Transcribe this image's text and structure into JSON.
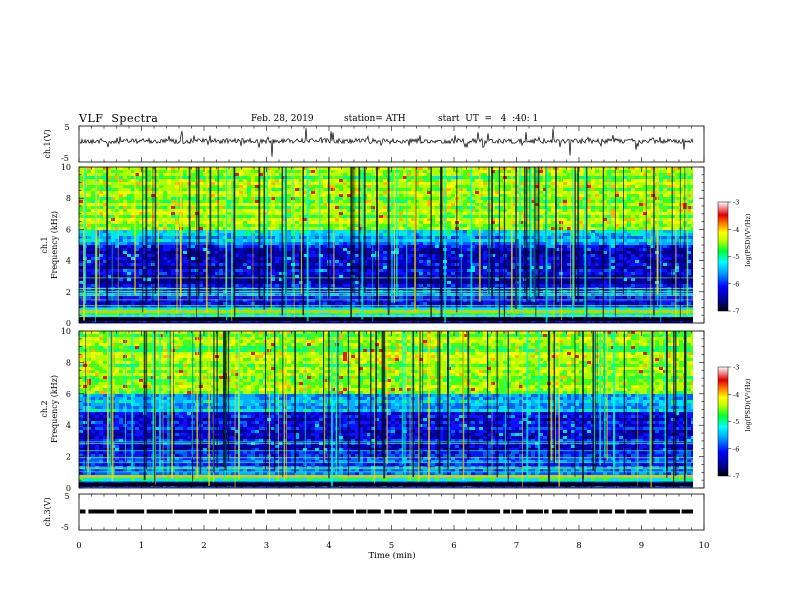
{
  "header": {
    "title": "VLF  Spectra",
    "date": "Feb. 28, 2019",
    "station": "station= ATH",
    "start": "start  UT  =   4  :40: 1"
  },
  "chart_data": [
    {
      "type": "line",
      "ylabel": "ch.1(V)",
      "ylim": [
        -5,
        5
      ],
      "yticks": [
        "5",
        "-5"
      ],
      "xlim": [
        0,
        10
      ]
    },
    {
      "type": "heatmap",
      "ylabel_top": "ch.1",
      "ylabel": "Frequency  (kHz)",
      "ylim": [
        0,
        10
      ],
      "yticks": [
        "10",
        "8",
        "6",
        "4",
        "2",
        "0"
      ],
      "colorbar": {
        "label": "log(PSD)(V²/Hz)",
        "range": [
          -7,
          -3
        ],
        "ticks": [
          "-3",
          "-4",
          "-5",
          "-6",
          "-7"
        ]
      }
    },
    {
      "type": "heatmap",
      "ylabel_top": "ch.2",
      "ylabel": "Frequency  (kHz)",
      "ylim": [
        0,
        10
      ],
      "yticks": [
        "10",
        "8",
        "6",
        "4",
        "2",
        "0"
      ],
      "colorbar": {
        "label": "log(PSD)(V²/Hz)",
        "range": [
          -7,
          -3
        ],
        "ticks": [
          "-3",
          "-4",
          "-5",
          "-6",
          "-7"
        ]
      }
    },
    {
      "type": "line",
      "ylabel": "ch.3(V)",
      "ylim": [
        -5,
        5
      ],
      "yticks": [
        "5",
        "-5"
      ],
      "xlim": [
        0,
        10
      ]
    }
  ],
  "xaxis": {
    "label": "Time  (min)",
    "range": [
      0,
      10
    ],
    "ticks": [
      "0",
      "1",
      "2",
      "3",
      "4",
      "5",
      "6",
      "7",
      "8",
      "9",
      "10"
    ]
  },
  "colors": {
    "low": "#00007a",
    "mid": "#1010ff",
    "cyan": "#00c8ff",
    "green": "#00ff40",
    "yellow": "#e8ff00",
    "red": "#e00000",
    "top": "#ffc0c0"
  }
}
